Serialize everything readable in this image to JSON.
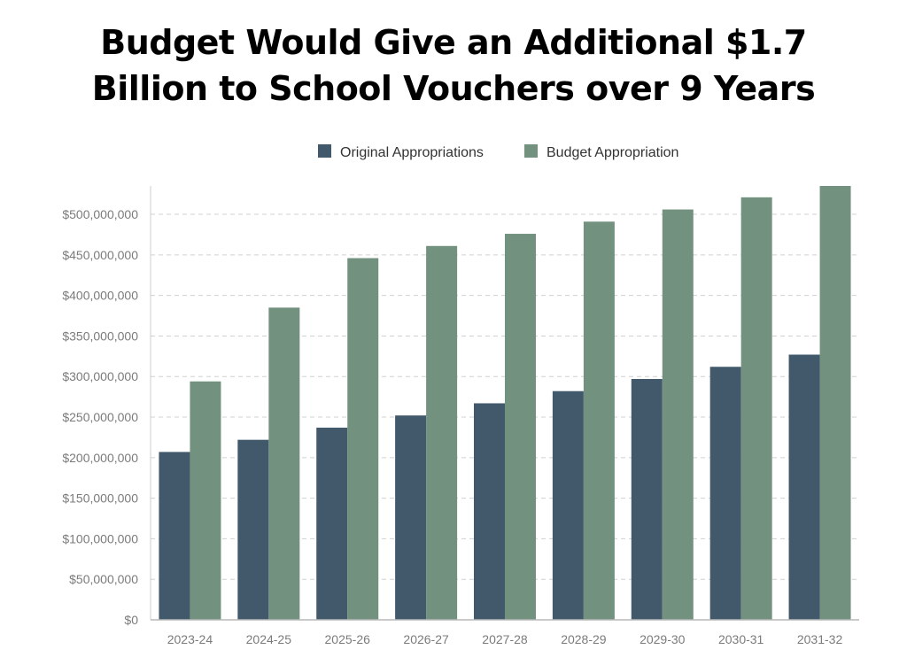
{
  "chart_data": {
    "type": "bar",
    "title_lines": [
      "Budget Would Give an Additional $1.7",
      "Billion to School Vouchers over 9 Years"
    ],
    "xlabel": "",
    "ylabel": "",
    "categories": [
      "2023-24",
      "2024-25",
      "2025-26",
      "2026-27",
      "2027-28",
      "2028-29",
      "2029-30",
      "2030-31",
      "2031-32"
    ],
    "series": [
      {
        "name": "Original Appropriations",
        "color": "#41596b",
        "values": [
          207000000,
          222000000,
          237000000,
          252000000,
          267000000,
          282000000,
          297000000,
          312000000,
          327000000
        ]
      },
      {
        "name": "Budget Appropriation",
        "color": "#73917f",
        "values": [
          294000000,
          385000000,
          446000000,
          461000000,
          476000000,
          491000000,
          506000000,
          521000000,
          536000000
        ]
      }
    ],
    "ylim": [
      0,
      535000000
    ],
    "yticks": [
      0,
      50000000,
      100000000,
      150000000,
      200000000,
      250000000,
      300000000,
      350000000,
      400000000,
      450000000,
      500000000
    ],
    "ytick_labels": [
      "$0",
      "$50,000,000",
      "$100,000,000",
      "$150,000,000",
      "$200,000,000",
      "$250,000,000",
      "$300,000,000",
      "$350,000,000",
      "$400,000,000",
      "$450,000,000",
      "$500,000,000"
    ],
    "grid": true,
    "legend_position": "top-center"
  }
}
